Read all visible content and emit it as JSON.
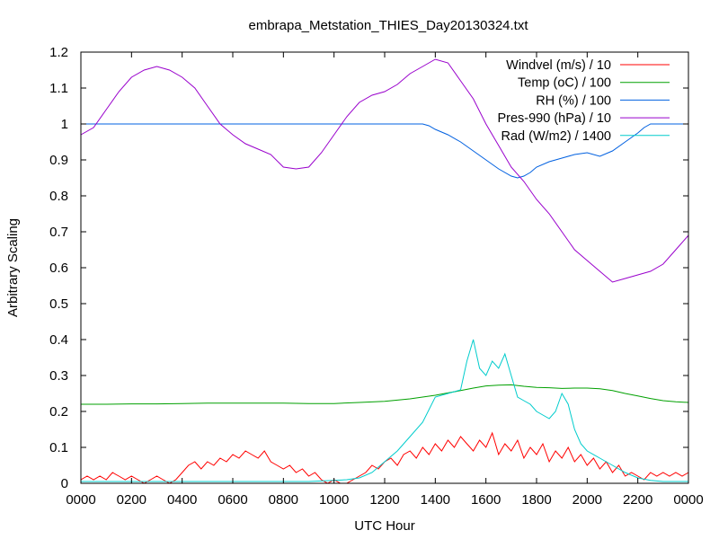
{
  "chart_data": {
    "type": "line",
    "title": "embrapa_Metstation_THIES_Day20130324.txt",
    "xlabel": "UTC Hour",
    "ylabel": "Arbitrary Scaling",
    "xlim": [
      0,
      24
    ],
    "ylim": [
      0,
      1.2
    ],
    "grid": false,
    "legend_position": "top-right",
    "x_ticks": [
      {
        "value": 0,
        "label": "0000"
      },
      {
        "value": 2,
        "label": "0200"
      },
      {
        "value": 4,
        "label": "0400"
      },
      {
        "value": 6,
        "label": "0600"
      },
      {
        "value": 8,
        "label": "0800"
      },
      {
        "value": 10,
        "label": "1000"
      },
      {
        "value": 12,
        "label": "1200"
      },
      {
        "value": 14,
        "label": "1400"
      },
      {
        "value": 16,
        "label": "1600"
      },
      {
        "value": 18,
        "label": "1800"
      },
      {
        "value": 20,
        "label": "2000"
      },
      {
        "value": 22,
        "label": "2200"
      },
      {
        "value": 24,
        "label": "0000"
      }
    ],
    "y_ticks": [
      {
        "value": 0,
        "label": "0"
      },
      {
        "value": 0.1,
        "label": "0.1"
      },
      {
        "value": 0.2,
        "label": "0.2"
      },
      {
        "value": 0.3,
        "label": "0.3"
      },
      {
        "value": 0.4,
        "label": "0.4"
      },
      {
        "value": 0.5,
        "label": "0.5"
      },
      {
        "value": 0.6,
        "label": "0.6"
      },
      {
        "value": 0.7,
        "label": "0.7"
      },
      {
        "value": 0.8,
        "label": "0.8"
      },
      {
        "value": 0.9,
        "label": "0.9"
      },
      {
        "value": 1.0,
        "label": "1"
      },
      {
        "value": 1.1,
        "label": "1.1"
      },
      {
        "value": 1.2,
        "label": "1.2"
      }
    ],
    "series": [
      {
        "name": "Windvel (m/s) / 10",
        "color": "#ff0000",
        "x": [
          0,
          0.25,
          0.5,
          0.75,
          1,
          1.25,
          1.5,
          1.75,
          2,
          2.25,
          2.5,
          2.75,
          3,
          3.25,
          3.5,
          3.75,
          4,
          4.25,
          4.5,
          4.75,
          5,
          5.25,
          5.5,
          5.75,
          6,
          6.25,
          6.5,
          6.75,
          7,
          7.25,
          7.5,
          7.75,
          8,
          8.25,
          8.5,
          8.75,
          9,
          9.25,
          9.5,
          9.75,
          10,
          10.25,
          10.5,
          10.75,
          11,
          11.25,
          11.5,
          11.75,
          12,
          12.25,
          12.5,
          12.75,
          13,
          13.25,
          13.5,
          13.75,
          14,
          14.25,
          14.5,
          14.75,
          15,
          15.25,
          15.5,
          15.75,
          16,
          16.25,
          16.5,
          16.75,
          17,
          17.25,
          17.5,
          17.75,
          18,
          18.25,
          18.5,
          18.75,
          19,
          19.25,
          19.5,
          19.75,
          20,
          20.25,
          20.5,
          20.75,
          21,
          21.25,
          21.5,
          21.75,
          22,
          22.25,
          22.5,
          22.75,
          23,
          23.25,
          23.5,
          23.75,
          24
        ],
        "y": [
          0.01,
          0.02,
          0.01,
          0.02,
          0.01,
          0.03,
          0.02,
          0.01,
          0.02,
          0.01,
          0,
          0.01,
          0.02,
          0.01,
          0,
          0.01,
          0.03,
          0.05,
          0.06,
          0.04,
          0.06,
          0.05,
          0.07,
          0.06,
          0.08,
          0.07,
          0.09,
          0.08,
          0.07,
          0.09,
          0.06,
          0.05,
          0.04,
          0.05,
          0.03,
          0.04,
          0.02,
          0.03,
          0.01,
          0,
          0.01,
          0,
          0,
          0.01,
          0.02,
          0.03,
          0.05,
          0.04,
          0.06,
          0.07,
          0.05,
          0.08,
          0.09,
          0.07,
          0.1,
          0.08,
          0.11,
          0.09,
          0.12,
          0.1,
          0.13,
          0.11,
          0.09,
          0.12,
          0.1,
          0.14,
          0.08,
          0.11,
          0.09,
          0.12,
          0.07,
          0.1,
          0.08,
          0.11,
          0.06,
          0.09,
          0.07,
          0.1,
          0.06,
          0.08,
          0.05,
          0.07,
          0.04,
          0.06,
          0.03,
          0.05,
          0.02,
          0.03,
          0.02,
          0.01,
          0.03,
          0.02,
          0.03,
          0.02,
          0.03,
          0.02,
          0.03
        ]
      },
      {
        "name": "Temp (oC) / 100",
        "color": "#00a000",
        "x": [
          0,
          1,
          2,
          3,
          4,
          5,
          6,
          7,
          8,
          9,
          10,
          11,
          12,
          13,
          14,
          15,
          15.5,
          16,
          16.5,
          17,
          17.5,
          18,
          18.5,
          19,
          19.5,
          20,
          20.5,
          21,
          21.5,
          22,
          22.5,
          23,
          23.5,
          24
        ],
        "y": [
          0.22,
          0.22,
          0.221,
          0.221,
          0.222,
          0.223,
          0.223,
          0.223,
          0.223,
          0.222,
          0.222,
          0.225,
          0.228,
          0.235,
          0.245,
          0.258,
          0.265,
          0.271,
          0.273,
          0.274,
          0.27,
          0.267,
          0.266,
          0.264,
          0.265,
          0.265,
          0.263,
          0.258,
          0.25,
          0.243,
          0.236,
          0.23,
          0.227,
          0.225
        ]
      },
      {
        "name": "RH (%) / 100",
        "color": "#0060e0",
        "x": [
          0,
          4,
          8,
          12,
          13.5,
          13.75,
          14,
          14.5,
          15,
          15.5,
          16,
          16.5,
          17,
          17.25,
          17.5,
          17.75,
          18,
          18.5,
          19,
          19.5,
          20,
          20.5,
          21,
          21.5,
          22,
          22.25,
          22.5,
          23,
          24
        ],
        "y": [
          1,
          1,
          1,
          1,
          1,
          0.995,
          0.985,
          0.97,
          0.95,
          0.925,
          0.9,
          0.875,
          0.855,
          0.85,
          0.855,
          0.865,
          0.88,
          0.895,
          0.905,
          0.915,
          0.92,
          0.91,
          0.925,
          0.95,
          0.975,
          0.99,
          1,
          1,
          1
        ]
      },
      {
        "name": "Pres-990 (hPa) / 10",
        "color": "#9900cc",
        "x": [
          0,
          0.5,
          1,
          1.5,
          2,
          2.5,
          3,
          3.5,
          4,
          4.5,
          5,
          5.5,
          6,
          6.5,
          7,
          7.5,
          8,
          8.5,
          9,
          9.5,
          10,
          10.5,
          11,
          11.5,
          12,
          12.5,
          13,
          13.5,
          14,
          14.5,
          15,
          15.5,
          16,
          16.5,
          17,
          17.5,
          18,
          18.5,
          19,
          19.5,
          20,
          20.5,
          21,
          21.5,
          22,
          22.5,
          23,
          23.5,
          24
        ],
        "y": [
          0.97,
          0.99,
          1.04,
          1.09,
          1.13,
          1.15,
          1.16,
          1.15,
          1.13,
          1.1,
          1.05,
          1,
          0.97,
          0.945,
          0.93,
          0.915,
          0.88,
          0.875,
          0.88,
          0.92,
          0.97,
          1.02,
          1.06,
          1.08,
          1.09,
          1.11,
          1.14,
          1.16,
          1.18,
          1.17,
          1.12,
          1.07,
          1.0,
          0.94,
          0.88,
          0.84,
          0.79,
          0.75,
          0.7,
          0.65,
          0.62,
          0.59,
          0.56,
          0.57,
          0.58,
          0.59,
          0.61,
          0.65,
          0.69
        ]
      },
      {
        "name": "Rad (W/m2) / 1400",
        "color": "#00cccc",
        "x": [
          0,
          2,
          4,
          6,
          8,
          9,
          10,
          10.5,
          11,
          11.5,
          12,
          12.5,
          13,
          13.5,
          14,
          14.5,
          15,
          15.25,
          15.5,
          15.75,
          16,
          16.25,
          16.5,
          16.75,
          17,
          17.25,
          17.5,
          17.75,
          18,
          18.25,
          18.5,
          18.75,
          19,
          19.25,
          19.5,
          19.75,
          20,
          20.5,
          21,
          21.5,
          22,
          22.5,
          23,
          24
        ],
        "y": [
          0.005,
          0.005,
          0.005,
          0.005,
          0.005,
          0.005,
          0.008,
          0.01,
          0.015,
          0.03,
          0.06,
          0.09,
          0.13,
          0.17,
          0.24,
          0.25,
          0.26,
          0.34,
          0.4,
          0.32,
          0.3,
          0.34,
          0.32,
          0.36,
          0.3,
          0.24,
          0.23,
          0.22,
          0.2,
          0.19,
          0.18,
          0.2,
          0.25,
          0.22,
          0.15,
          0.11,
          0.09,
          0.07,
          0.05,
          0.03,
          0.015,
          0.008,
          0.005,
          0.005
        ]
      }
    ]
  }
}
